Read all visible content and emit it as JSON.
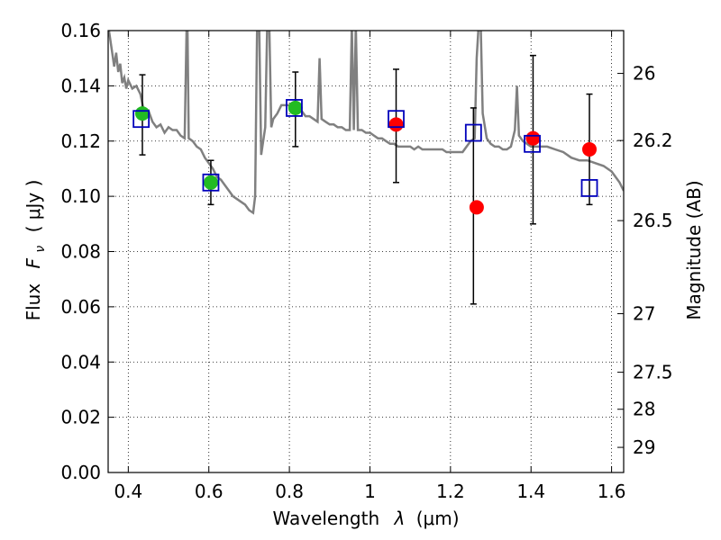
{
  "chart_data": {
    "type": "scatter",
    "xlabel_text": "Wavelength",
    "xlabel_symbol": "λ",
    "xlabel_unit": "(μm)",
    "ylabel_text": "Flux",
    "ylabel_symbol": "F",
    "ylabel_sub": "ν",
    "ylabel_unit": "( μJy )",
    "y2label": "Magnitude (AB)",
    "xlim": [
      0.35,
      1.63
    ],
    "ylim": [
      0.0,
      0.16
    ],
    "x_ticks": [
      0.4,
      0.6,
      0.8,
      1.0,
      1.2,
      1.4,
      1.6
    ],
    "x_tick_labels": [
      "0.4",
      "0.6",
      "0.8",
      "1",
      "1.2",
      "1.4",
      "1.6"
    ],
    "y_ticks": [
      0.0,
      0.02,
      0.04,
      0.06,
      0.08,
      0.1,
      0.12,
      0.14,
      0.16
    ],
    "y_tick_labels": [
      "0.00",
      "0.02",
      "0.04",
      "0.06",
      "0.08",
      "0.10",
      "0.12",
      "0.14",
      "0.16"
    ],
    "y2_ticks": [
      {
        "label": "26",
        "flux": 0.1445
      },
      {
        "label": "26.2",
        "flux": 0.1202
      },
      {
        "label": "26.5",
        "flux": 0.0912
      },
      {
        "label": "27",
        "flux": 0.0575
      },
      {
        "label": "27.5",
        "flux": 0.0363
      },
      {
        "label": "28",
        "flux": 0.0229
      },
      {
        "label": "29",
        "flux": 0.0091
      }
    ],
    "grid": true,
    "colors": {
      "model": "#808080",
      "green": "#22bb22",
      "red": "#ff0000",
      "square": "#0000bb",
      "errorbar": "#000000"
    },
    "model_spectrum": [
      [
        0.35,
        0.162
      ],
      [
        0.36,
        0.152
      ],
      [
        0.365,
        0.147
      ],
      [
        0.37,
        0.152
      ],
      [
        0.375,
        0.145
      ],
      [
        0.38,
        0.148
      ],
      [
        0.385,
        0.141
      ],
      [
        0.39,
        0.143
      ],
      [
        0.395,
        0.139
      ],
      [
        0.4,
        0.142
      ],
      [
        0.41,
        0.139
      ],
      [
        0.42,
        0.14
      ],
      [
        0.43,
        0.137
      ],
      [
        0.44,
        0.13
      ],
      [
        0.45,
        0.131
      ],
      [
        0.46,
        0.127
      ],
      [
        0.47,
        0.125
      ],
      [
        0.48,
        0.126
      ],
      [
        0.49,
        0.123
      ],
      [
        0.5,
        0.125
      ],
      [
        0.51,
        0.124
      ],
      [
        0.52,
        0.124
      ],
      [
        0.53,
        0.122
      ],
      [
        0.54,
        0.121
      ],
      [
        0.545,
        0.162
      ],
      [
        0.547,
        0.162
      ],
      [
        0.55,
        0.121
      ],
      [
        0.56,
        0.12
      ],
      [
        0.57,
        0.118
      ],
      [
        0.58,
        0.117
      ],
      [
        0.59,
        0.114
      ],
      [
        0.6,
        0.112
      ],
      [
        0.61,
        0.11
      ],
      [
        0.62,
        0.107
      ],
      [
        0.63,
        0.106
      ],
      [
        0.64,
        0.104
      ],
      [
        0.65,
        0.102
      ],
      [
        0.66,
        0.1
      ],
      [
        0.67,
        0.099
      ],
      [
        0.68,
        0.098
      ],
      [
        0.69,
        0.097
      ],
      [
        0.7,
        0.095
      ],
      [
        0.71,
        0.094
      ],
      [
        0.715,
        0.1
      ],
      [
        0.72,
        0.162
      ],
      [
        0.725,
        0.162
      ],
      [
        0.73,
        0.115
      ],
      [
        0.74,
        0.125
      ],
      [
        0.745,
        0.162
      ],
      [
        0.75,
        0.162
      ],
      [
        0.755,
        0.125
      ],
      [
        0.76,
        0.128
      ],
      [
        0.77,
        0.13
      ],
      [
        0.78,
        0.133
      ],
      [
        0.79,
        0.133
      ],
      [
        0.8,
        0.133
      ],
      [
        0.81,
        0.134
      ],
      [
        0.82,
        0.133
      ],
      [
        0.83,
        0.131
      ],
      [
        0.84,
        0.129
      ],
      [
        0.85,
        0.129
      ],
      [
        0.86,
        0.128
      ],
      [
        0.87,
        0.127
      ],
      [
        0.875,
        0.15
      ],
      [
        0.88,
        0.128
      ],
      [
        0.89,
        0.127
      ],
      [
        0.9,
        0.126
      ],
      [
        0.91,
        0.126
      ],
      [
        0.92,
        0.125
      ],
      [
        0.93,
        0.125
      ],
      [
        0.94,
        0.124
      ],
      [
        0.95,
        0.124
      ],
      [
        0.955,
        0.162
      ],
      [
        0.96,
        0.124
      ],
      [
        0.965,
        0.162
      ],
      [
        0.97,
        0.124
      ],
      [
        0.98,
        0.124
      ],
      [
        0.99,
        0.123
      ],
      [
        1.0,
        0.123
      ],
      [
        1.01,
        0.122
      ],
      [
        1.02,
        0.121
      ],
      [
        1.03,
        0.121
      ],
      [
        1.04,
        0.12
      ],
      [
        1.05,
        0.119
      ],
      [
        1.06,
        0.119
      ],
      [
        1.07,
        0.118
      ],
      [
        1.08,
        0.118
      ],
      [
        1.09,
        0.118
      ],
      [
        1.1,
        0.118
      ],
      [
        1.11,
        0.117
      ],
      [
        1.12,
        0.118
      ],
      [
        1.13,
        0.117
      ],
      [
        1.14,
        0.117
      ],
      [
        1.15,
        0.117
      ],
      [
        1.16,
        0.117
      ],
      [
        1.17,
        0.117
      ],
      [
        1.18,
        0.117
      ],
      [
        1.19,
        0.116
      ],
      [
        1.2,
        0.116
      ],
      [
        1.21,
        0.116
      ],
      [
        1.22,
        0.116
      ],
      [
        1.23,
        0.116
      ],
      [
        1.24,
        0.118
      ],
      [
        1.25,
        0.12
      ],
      [
        1.26,
        0.121
      ],
      [
        1.265,
        0.15
      ],
      [
        1.27,
        0.162
      ],
      [
        1.275,
        0.162
      ],
      [
        1.28,
        0.13
      ],
      [
        1.29,
        0.121
      ],
      [
        1.3,
        0.119
      ],
      [
        1.31,
        0.118
      ],
      [
        1.32,
        0.118
      ],
      [
        1.33,
        0.117
      ],
      [
        1.34,
        0.117
      ],
      [
        1.35,
        0.118
      ],
      [
        1.36,
        0.124
      ],
      [
        1.365,
        0.14
      ],
      [
        1.37,
        0.122
      ],
      [
        1.38,
        0.12
      ],
      [
        1.39,
        0.119
      ],
      [
        1.4,
        0.118
      ],
      [
        1.42,
        0.118
      ],
      [
        1.44,
        0.118
      ],
      [
        1.46,
        0.117
      ],
      [
        1.48,
        0.116
      ],
      [
        1.5,
        0.114
      ],
      [
        1.52,
        0.113
      ],
      [
        1.54,
        0.113
      ],
      [
        1.56,
        0.112
      ],
      [
        1.58,
        0.111
      ],
      [
        1.6,
        0.109
      ],
      [
        1.62,
        0.105
      ],
      [
        1.63,
        0.102
      ]
    ],
    "green_points": [
      {
        "x": 0.435,
        "y": 0.13
      },
      {
        "x": 0.605,
        "y": 0.105
      },
      {
        "x": 0.815,
        "y": 0.132
      }
    ],
    "red_points": [
      {
        "x": 1.065,
        "y": 0.126
      },
      {
        "x": 1.265,
        "y": 0.096
      },
      {
        "x": 1.405,
        "y": 0.121
      },
      {
        "x": 1.545,
        "y": 0.117
      }
    ],
    "squares": [
      {
        "x": 0.432,
        "y": 0.128
      },
      {
        "x": 0.605,
        "y": 0.105
      },
      {
        "x": 0.812,
        "y": 0.132
      },
      {
        "x": 1.065,
        "y": 0.128
      },
      {
        "x": 1.257,
        "y": 0.123
      },
      {
        "x": 1.403,
        "y": 0.119
      },
      {
        "x": 1.545,
        "y": 0.103
      }
    ],
    "error_bars": [
      {
        "x": 0.435,
        "low": 0.115,
        "high": 0.144
      },
      {
        "x": 0.605,
        "low": 0.097,
        "high": 0.113
      },
      {
        "x": 0.815,
        "low": 0.118,
        "high": 0.145
      },
      {
        "x": 1.065,
        "low": 0.105,
        "high": 0.146
      },
      {
        "x": 1.257,
        "low": 0.061,
        "high": 0.132
      },
      {
        "x": 1.405,
        "low": 0.09,
        "high": 0.151
      },
      {
        "x": 1.545,
        "low": 0.097,
        "high": 0.137
      }
    ]
  }
}
